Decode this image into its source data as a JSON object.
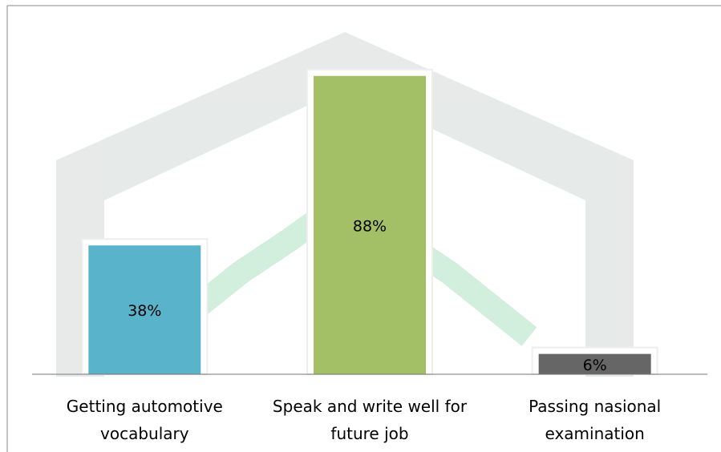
{
  "chart_data": {
    "type": "bar",
    "categories": [
      "Getting automotive vocabulary",
      "Speak and write well for future job",
      "Passing nasional examination"
    ],
    "values": [
      38,
      88,
      6
    ],
    "value_labels": [
      "38%",
      "88%",
      "6%"
    ],
    "colors": [
      "#4bacc6",
      "#9bbb59",
      "#595959"
    ]
  }
}
